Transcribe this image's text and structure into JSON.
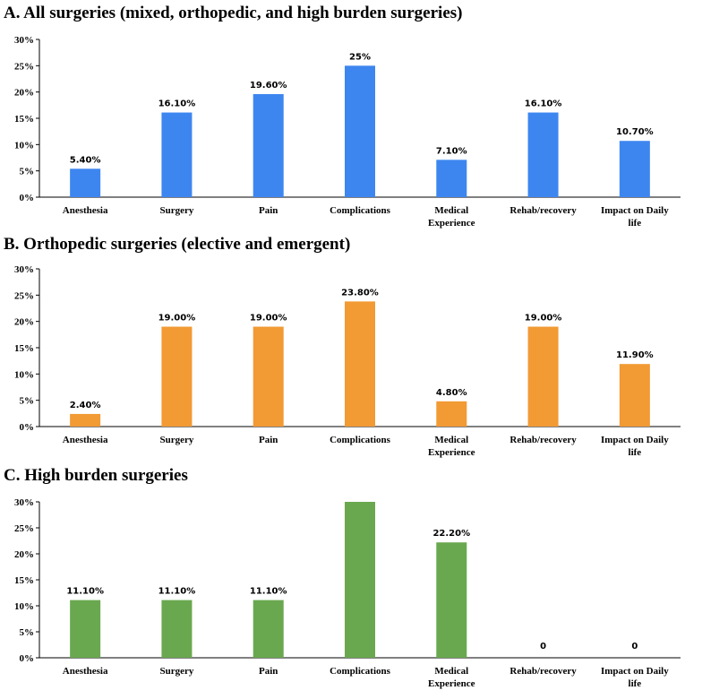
{
  "chart_data": [
    {
      "type": "bar",
      "title": "A. All surgeries (mixed, orthopedic, and high burden surgeries)",
      "categories": [
        "Anesthesia",
        "Surgery",
        "Pain",
        "Complications",
        "Medical Experience",
        "Rehab/recovery",
        "Impact on Daily life"
      ],
      "category_lines": [
        [
          "Anesthesia"
        ],
        [
          "Surgery"
        ],
        [
          "Pain"
        ],
        [
          "Complications"
        ],
        [
          "Medical",
          "Experience"
        ],
        [
          "Rehab/recovery"
        ],
        [
          "Impact on Daily",
          "life"
        ]
      ],
      "values": [
        5.4,
        16.1,
        19.6,
        25,
        7.1,
        16.1,
        10.7
      ],
      "data_labels": [
        "5.40%",
        "16.10%",
        "19.60%",
        "25%",
        "7.10%",
        "16.10%",
        "10.70%"
      ],
      "yticks": [
        "0%",
        "5%",
        "10%",
        "15%",
        "20%",
        "25%",
        "30%"
      ],
      "ylim": [
        0,
        30
      ],
      "color": "#3d86f0",
      "grid": false
    },
    {
      "type": "bar",
      "title": "B. Orthopedic surgeries (elective and emergent)",
      "categories": [
        "Anesthesia",
        "Surgery",
        "Pain",
        "Complications",
        "Medical Experience",
        "Rehab/recovery",
        "Impact on Daily life"
      ],
      "category_lines": [
        [
          "Anesthesia"
        ],
        [
          "Surgery"
        ],
        [
          "Pain"
        ],
        [
          "Complications"
        ],
        [
          "Medical",
          "Experience"
        ],
        [
          "Rehab/recovery"
        ],
        [
          "Impact on Daily",
          "life"
        ]
      ],
      "values": [
        2.4,
        19.0,
        19.0,
        23.8,
        4.8,
        19.0,
        11.9
      ],
      "data_labels": [
        "2.40%",
        "19.00%",
        "19.00%",
        "23.80%",
        "4.80%",
        "19.00%",
        "11.90%"
      ],
      "yticks": [
        "0%",
        "5%",
        "10%",
        "15%",
        "20%",
        "25%",
        "30%"
      ],
      "ylim": [
        0,
        30
      ],
      "color": "#f29a34",
      "grid": false
    },
    {
      "type": "bar",
      "title": "C. High burden surgeries",
      "categories": [
        "Anesthesia",
        "Surgery",
        "Pain",
        "Complications",
        "Medical Experience",
        "Rehab/recovery",
        "Impact on Daily life"
      ],
      "category_lines": [
        [
          "Anesthesia"
        ],
        [
          "Surgery"
        ],
        [
          "Pain"
        ],
        [
          "Complications"
        ],
        [
          "Medical",
          "Experience"
        ],
        [
          "Rehab/recovery"
        ],
        [
          "Impact on Daily",
          "life"
        ]
      ],
      "values": [
        11.1,
        11.1,
        11.1,
        30,
        22.2,
        0,
        0
      ],
      "data_labels": [
        "11.10%",
        "11.10%",
        "11.10%",
        "",
        "22.20%",
        "0",
        "0"
      ],
      "yticks": [
        "0%",
        "5%",
        "10%",
        "15%",
        "20%",
        "25%",
        "30%"
      ],
      "ylim": [
        0,
        30
      ],
      "color": "#6aa84f",
      "grid": false
    }
  ]
}
